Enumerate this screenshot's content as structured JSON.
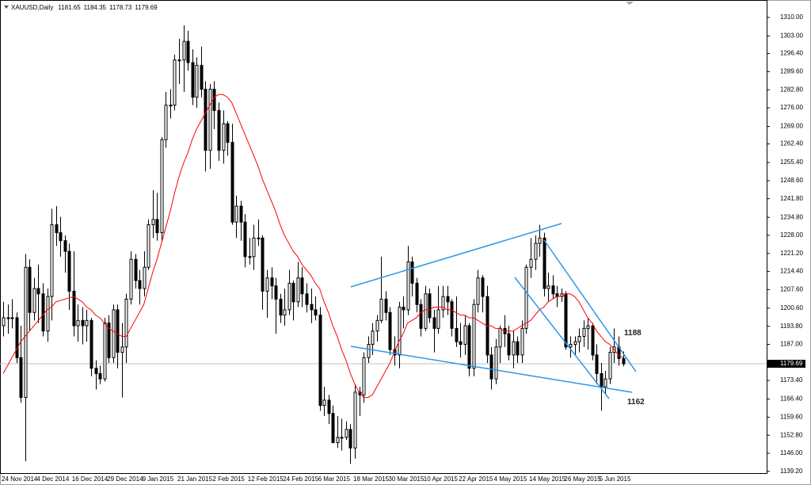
{
  "chart_data": {
    "type": "candlestick",
    "title": "XAUUSD,Daily",
    "up_color": "#ffffff",
    "down_color": "#000000",
    "overlay_color": "#ff0000",
    "ylim": [
      1138.25,
      1316.56
    ],
    "yticks": [
      {
        "value": 1310,
        "label": "1310.00"
      },
      {
        "value": 1303,
        "label": "1303.00"
      },
      {
        "value": 1296.4,
        "label": "1296.40"
      },
      {
        "value": 1289.6,
        "label": "1289.60"
      },
      {
        "value": 1282.8,
        "label": "1282.80"
      },
      {
        "value": 1276,
        "label": "1276.00"
      },
      {
        "value": 1269,
        "label": "1269.00"
      },
      {
        "value": 1262.4,
        "label": "1262.40"
      },
      {
        "value": 1255.4,
        "label": "1255.40"
      },
      {
        "value": 1248.6,
        "label": "1248.60"
      },
      {
        "value": 1241.8,
        "label": "1241.80"
      },
      {
        "value": 1234.8,
        "label": "1234.80"
      },
      {
        "value": 1228,
        "label": "1228.00"
      },
      {
        "value": 1221.2,
        "label": "1221.20"
      },
      {
        "value": 1214.4,
        "label": "1214.40"
      },
      {
        "value": 1207.6,
        "label": "1207.60"
      },
      {
        "value": 1200.6,
        "label": "1200.60"
      },
      {
        "value": 1193.8,
        "label": "1193.80"
      },
      {
        "value": 1187,
        "label": "1187.00"
      },
      {
        "value": 1173.4,
        "label": "1173.40"
      },
      {
        "value": 1166.4,
        "label": "1166.40"
      },
      {
        "value": 1159.6,
        "label": "1159.60"
      },
      {
        "value": 1152.8,
        "label": "1152.80"
      },
      {
        "value": 1146,
        "label": "1146.00"
      },
      {
        "value": 1139.2,
        "label": "1139.20"
      }
    ],
    "annotations": [
      1188,
      1162
    ],
    "categories": [
      "24 Nov 2014",
      null,
      null,
      null,
      null,
      null,
      null,
      null,
      "4 Dec 2014",
      null,
      null,
      null,
      null,
      null,
      null,
      null,
      "16 Dec 2014",
      null,
      null,
      null,
      null,
      null,
      null,
      null,
      "29 Dec 2014",
      null,
      null,
      null,
      null,
      null,
      null,
      null,
      "9 Jan 2015",
      null,
      null,
      null,
      null,
      null,
      null,
      null,
      "21 Jan 2015",
      null,
      null,
      null,
      null,
      null,
      null,
      null,
      "2 Feb 2015",
      null,
      null,
      null,
      null,
      null,
      null,
      null,
      "12 Feb 2015",
      null,
      null,
      null,
      null,
      null,
      null,
      null,
      "24 Feb 2015",
      null,
      null,
      null,
      null,
      null,
      null,
      null,
      "6 Mar 2015",
      null,
      null,
      null,
      null,
      null,
      null,
      null,
      "18 Mar 2015",
      null,
      null,
      null,
      null,
      null,
      null,
      null,
      "30 Mar 2015",
      null,
      null,
      null,
      null,
      null,
      null,
      null,
      "10 Apr 2015",
      null,
      null,
      null,
      null,
      null,
      null,
      null,
      "22 Apr 2015",
      null,
      null,
      null,
      null,
      null,
      null,
      null,
      "4 May 2015",
      null,
      null,
      null,
      null,
      null,
      null,
      null,
      "14 May 2015",
      null,
      null,
      null,
      null,
      null,
      null,
      null,
      "26 May 2015",
      null,
      null,
      null,
      null,
      null,
      null,
      null,
      "5 Jun 2015",
      null,
      null,
      null,
      null,
      null
    ],
    "ohlc": [
      [
        1194,
        1203,
        1190,
        1197
      ],
      [
        1197,
        1202,
        1191,
        1197
      ],
      [
        1197,
        1204,
        1193,
        1197
      ],
      [
        1197,
        1199,
        1180,
        1182
      ],
      [
        1182,
        1194,
        1165,
        1167
      ],
      [
        1167,
        1221,
        1143,
        1216
      ],
      [
        1216,
        1219,
        1192,
        1199
      ],
      [
        1199,
        1212,
        1196,
        1208
      ],
      [
        1208,
        1217,
        1195,
        1206
      ],
      [
        1206,
        1210,
        1190,
        1192
      ],
      [
        1192,
        1208,
        1188,
        1205
      ],
      [
        1205,
        1238,
        1196,
        1232
      ],
      [
        1232,
        1239,
        1224,
        1229
      ],
      [
        1229,
        1235,
        1220,
        1226
      ],
      [
        1226,
        1228,
        1214,
        1222
      ],
      [
        1222,
        1225,
        1200,
        1207
      ],
      [
        1207,
        1222,
        1190,
        1194
      ],
      [
        1194,
        1202,
        1188,
        1196
      ],
      [
        1196,
        1201,
        1187,
        1194
      ],
      [
        1194,
        1200,
        1188,
        1196
      ],
      [
        1196,
        1197,
        1175,
        1178
      ],
      [
        1178,
        1181,
        1170,
        1176
      ],
      [
        1176,
        1179,
        1172,
        1174
      ],
      [
        1174,
        1197,
        1173,
        1195
      ],
      [
        1195,
        1198,
        1180,
        1182
      ],
      [
        1182,
        1202,
        1180,
        1200
      ],
      [
        1200,
        1202,
        1178,
        1184
      ],
      [
        1184,
        1195,
        1167,
        1186
      ],
      [
        1186,
        1206,
        1180,
        1204
      ],
      [
        1204,
        1222,
        1202,
        1219
      ],
      [
        1219,
        1221,
        1208,
        1211
      ],
      [
        1211,
        1215,
        1202,
        1208
      ],
      [
        1208,
        1222,
        1205,
        1216
      ],
      [
        1216,
        1234,
        1215,
        1232
      ],
      [
        1232,
        1245,
        1227,
        1234
      ],
      [
        1234,
        1244,
        1226,
        1229
      ],
      [
        1229,
        1265,
        1226,
        1264
      ],
      [
        1264,
        1282,
        1261,
        1277
      ],
      [
        1277,
        1283,
        1272,
        1277
      ],
      [
        1277,
        1296,
        1275,
        1294
      ],
      [
        1294,
        1302,
        1285,
        1294
      ],
      [
        1294,
        1307,
        1282,
        1301
      ],
      [
        1301,
        1305,
        1290,
        1293
      ],
      [
        1293,
        1298,
        1277,
        1280
      ],
      [
        1280,
        1295,
        1276,
        1292
      ],
      [
        1292,
        1299,
        1280,
        1283
      ],
      [
        1283,
        1286,
        1252,
        1260
      ],
      [
        1260,
        1285,
        1253,
        1283
      ],
      [
        1283,
        1286,
        1268,
        1275
      ],
      [
        1275,
        1278,
        1256,
        1260
      ],
      [
        1260,
        1275,
        1255,
        1270
      ],
      [
        1270,
        1271,
        1258,
        1263
      ],
      [
        1263,
        1270,
        1232,
        1233
      ],
      [
        1233,
        1243,
        1227,
        1239
      ],
      [
        1239,
        1241,
        1226,
        1233
      ],
      [
        1233,
        1236,
        1216,
        1220
      ],
      [
        1220,
        1227,
        1217,
        1220
      ],
      [
        1220,
        1232,
        1215,
        1227
      ],
      [
        1227,
        1234,
        1224,
        1227
      ],
      [
        1227,
        1228,
        1200,
        1207
      ],
      [
        1207,
        1215,
        1197,
        1212
      ],
      [
        1212,
        1216,
        1204,
        1209
      ],
      [
        1209,
        1212,
        1191,
        1204
      ],
      [
        1204,
        1206,
        1195,
        1198
      ],
      [
        1198,
        1208,
        1194,
        1200
      ],
      [
        1200,
        1215,
        1198,
        1210
      ],
      [
        1210,
        1211,
        1196,
        1203
      ],
      [
        1203,
        1218,
        1201,
        1212
      ],
      [
        1212,
        1216,
        1201,
        1206
      ],
      [
        1206,
        1210,
        1199,
        1202
      ],
      [
        1202,
        1208,
        1195,
        1200
      ],
      [
        1200,
        1205,
        1196,
        1198
      ],
      [
        1198,
        1201,
        1162,
        1164
      ],
      [
        1164,
        1171,
        1160,
        1166
      ],
      [
        1166,
        1168,
        1157,
        1161
      ],
      [
        1161,
        1164,
        1150,
        1150
      ],
      [
        1150,
        1160,
        1148,
        1152
      ],
      [
        1152,
        1159,
        1147,
        1152
      ],
      [
        1152,
        1158,
        1151,
        1155
      ],
      [
        1155,
        1157,
        1142,
        1148
      ],
      [
        1148,
        1172,
        1144,
        1169
      ],
      [
        1169,
        1171,
        1160,
        1168
      ],
      [
        1168,
        1184,
        1165,
        1182
      ],
      [
        1182,
        1190,
        1180,
        1187
      ],
      [
        1187,
        1195,
        1183,
        1192
      ],
      [
        1192,
        1198,
        1188,
        1196
      ],
      [
        1196,
        1220,
        1195,
        1204
      ],
      [
        1204,
        1207,
        1196,
        1199
      ],
      [
        1199,
        1201,
        1183,
        1185
      ],
      [
        1185,
        1190,
        1179,
        1183
      ],
      [
        1183,
        1203,
        1178,
        1201
      ],
      [
        1201,
        1205,
        1193,
        1200
      ],
      [
        1200,
        1224,
        1198,
        1218
      ],
      [
        1218,
        1220,
        1205,
        1210
      ],
      [
        1210,
        1212,
        1199,
        1202
      ],
      [
        1202,
        1204,
        1190,
        1193
      ],
      [
        1193,
        1209,
        1192,
        1206
      ],
      [
        1206,
        1208,
        1195,
        1197
      ],
      [
        1197,
        1200,
        1184,
        1193
      ],
      [
        1193,
        1209,
        1191,
        1200
      ],
      [
        1200,
        1209,
        1197,
        1205
      ],
      [
        1205,
        1209,
        1198,
        1203
      ],
      [
        1203,
        1204,
        1190,
        1193
      ],
      [
        1193,
        1205,
        1186,
        1188
      ],
      [
        1188,
        1195,
        1182,
        1187
      ],
      [
        1187,
        1198,
        1183,
        1194
      ],
      [
        1194,
        1195,
        1175,
        1178
      ],
      [
        1178,
        1204,
        1175,
        1202
      ],
      [
        1202,
        1215,
        1199,
        1212
      ],
      [
        1212,
        1213,
        1199,
        1205
      ],
      [
        1205,
        1209,
        1180,
        1183
      ],
      [
        1183,
        1186,
        1170,
        1174
      ],
      [
        1174,
        1189,
        1172,
        1186
      ],
      [
        1186,
        1194,
        1180,
        1193
      ],
      [
        1193,
        1198,
        1186,
        1191
      ],
      [
        1191,
        1194,
        1181,
        1183
      ],
      [
        1183,
        1192,
        1178,
        1188
      ],
      [
        1188,
        1190,
        1180,
        1183
      ],
      [
        1183,
        1196,
        1180,
        1193
      ],
      [
        1193,
        1217,
        1191,
        1216
      ],
      [
        1216,
        1227,
        1212,
        1219
      ],
      [
        1219,
        1228,
        1215,
        1225
      ],
      [
        1225,
        1232,
        1220,
        1227
      ],
      [
        1227,
        1229,
        1205,
        1208
      ],
      [
        1208,
        1214,
        1203,
        1209
      ],
      [
        1209,
        1213,
        1204,
        1206
      ],
      [
        1206,
        1209,
        1201,
        1205
      ],
      [
        1205,
        1208,
        1203,
        1206
      ],
      [
        1206,
        1207,
        1185,
        1186
      ],
      [
        1186,
        1190,
        1182,
        1187
      ],
      [
        1187,
        1190,
        1183,
        1188
      ],
      [
        1188,
        1193,
        1184,
        1190
      ],
      [
        1190,
        1196,
        1186,
        1193
      ],
      [
        1193,
        1197,
        1185,
        1194
      ],
      [
        1194,
        1195,
        1181,
        1183
      ],
      [
        1183,
        1187,
        1172,
        1176
      ],
      [
        1176,
        1180,
        1162,
        1171
      ],
      [
        1171,
        1177,
        1168,
        1174
      ],
      [
        1174,
        1186,
        1172,
        1184
      ],
      [
        1184,
        1193,
        1180,
        1186
      ],
      [
        1186,
        1190,
        1179,
        1181.65
      ],
      [
        1181.65,
        1184.35,
        1178.73,
        1179.69
      ]
    ],
    "overlay": [
      1176,
      1179,
      1182,
      1185,
      1188,
      1190,
      1192,
      1194,
      1196,
      1198,
      1200,
      1201,
      1203,
      1203.5,
      1204,
      1204.5,
      1205,
      1204,
      1203,
      1201,
      1200,
      1198,
      1197,
      1195,
      1193,
      1192,
      1191,
      1190,
      1190,
      1193,
      1196,
      1199,
      1202,
      1208,
      1214,
      1219,
      1225,
      1231,
      1237,
      1244,
      1250,
      1255,
      1259,
      1264,
      1268,
      1271,
      1274,
      1277,
      1280,
      1281,
      1281,
      1280,
      1278,
      1274,
      1270,
      1266,
      1262,
      1258,
      1254,
      1249,
      1245,
      1241,
      1237,
      1232,
      1228,
      1225,
      1222,
      1220,
      1217,
      1215,
      1213,
      1210,
      1208,
      1203,
      1199,
      1194,
      1190,
      1185,
      1181,
      1176,
      1172,
      1169,
      1167,
      1167,
      1168,
      1171,
      1174,
      1177,
      1180,
      1184,
      1188,
      1191,
      1195,
      1196,
      1197,
      1199,
      1200,
      1200,
      1201,
      1201,
      1201,
      1200,
      1200,
      1199,
      1198,
      1198,
      1197,
      1197,
      1196,
      1195,
      1194,
      1194,
      1193,
      1193,
      1192,
      1192,
      1192,
      1193,
      1194,
      1195,
      1196,
      1198,
      1200,
      1201,
      1203,
      1204,
      1205,
      1205,
      1206,
      1206,
      1205,
      1203,
      1200,
      1197,
      1195,
      1192,
      1190,
      1188,
      1187,
      1185,
      1183,
      1182
    ]
  }
}
